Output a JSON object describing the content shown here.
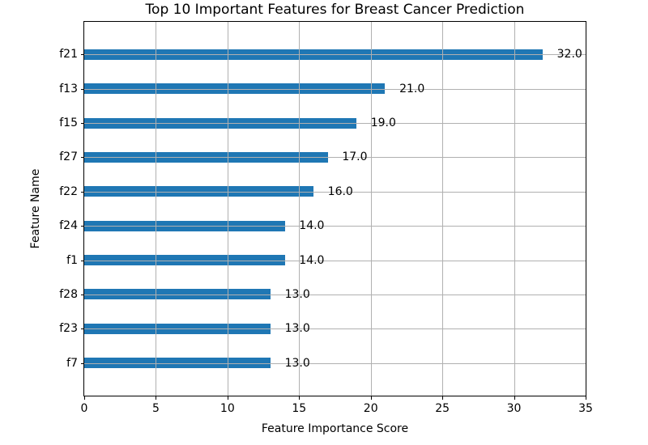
{
  "chart_data": {
    "type": "bar",
    "orientation": "horizontal",
    "title": "Top 10 Important Features for Breast Cancer Prediction",
    "xlabel": "Feature Importance Score",
    "ylabel": "Feature Name",
    "categories": [
      "f21",
      "f13",
      "f15",
      "f27",
      "f22",
      "f24",
      "f1",
      "f28",
      "f23",
      "f7"
    ],
    "values": [
      32,
      21,
      19,
      17,
      16,
      14,
      14,
      13,
      13,
      13
    ],
    "value_labels": [
      "32.0",
      "21.0",
      "19.0",
      "17.0",
      "16.0",
      "14.0",
      "14.0",
      "13.0",
      "13.0",
      "13.0"
    ],
    "xlim": [
      0,
      35
    ],
    "xticks": [
      0,
      5,
      10,
      15,
      20,
      25,
      30,
      35
    ],
    "grid": true,
    "legend": null,
    "bar_color": "#1f77b4",
    "grid_color": "#b0b0b0",
    "axis_color": "#000000",
    "text_color": "#000000",
    "background": "#ffffff"
  }
}
